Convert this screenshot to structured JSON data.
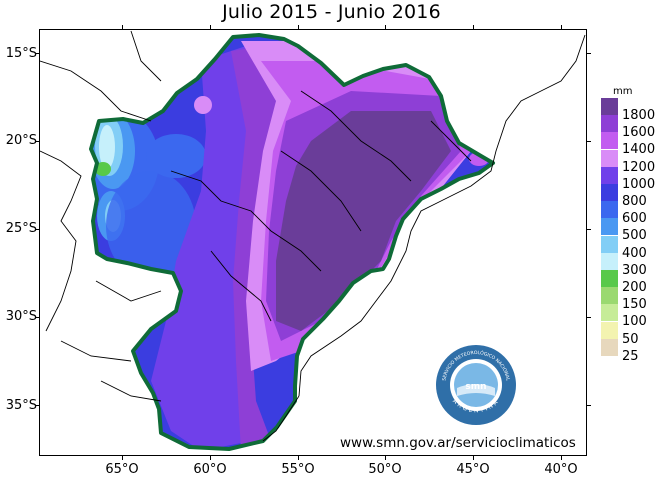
{
  "title": "Julio 2015 - Junio 2016",
  "units": "mm",
  "website": "www.smn.gov.ar/servicioclimaticos",
  "latitude_labels": [
    "15°S",
    "20°S",
    "25°S",
    "30°S",
    "35°S"
  ],
  "longitude_labels": [
    "65°O",
    "60°O",
    "55°O",
    "50°O",
    "45°O",
    "40°O"
  ],
  "legend": {
    "labels": [
      "1800",
      "1600",
      "1400",
      "1200",
      "1000",
      "800",
      "600",
      "500",
      "400",
      "300",
      "200",
      "150",
      "100",
      "50",
      "25"
    ],
    "colors": [
      "#6a3d99",
      "#8e3fd6",
      "#c25cf0",
      "#d98cf7",
      "#7040ea",
      "#3b3de0",
      "#3b68ef",
      "#4a98f2",
      "#82cef6",
      "#c6f0fb",
      "#58c94a",
      "#9ad970",
      "#c6ec98",
      "#f3f3b0",
      "#e7d8bd"
    ]
  },
  "logo": {
    "text_top": "SERVICIO METEOROLÓGICO NACIONAL",
    "text_bottom": "ARGENTINA",
    "center": "smn"
  }
}
